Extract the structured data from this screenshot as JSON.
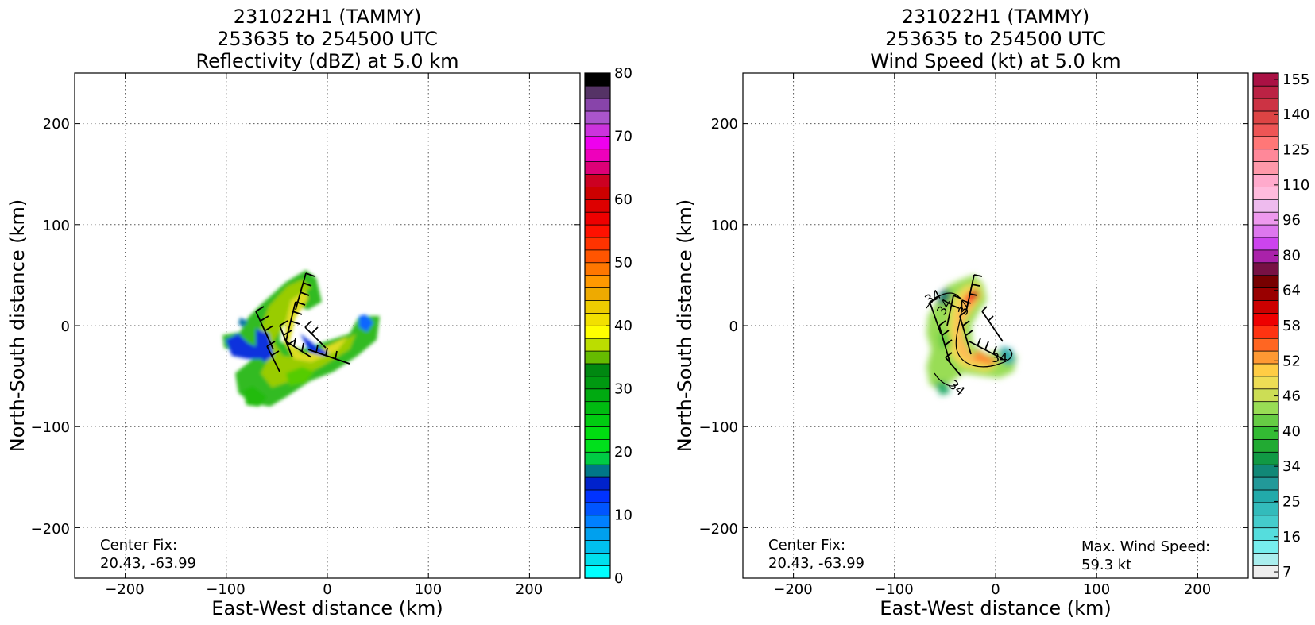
{
  "figure": {
    "panels": [
      "left",
      "right"
    ]
  },
  "chart_data": [
    {
      "type": "heatmap",
      "panel": "left",
      "title_lines": [
        "231022H1 (TAMMY)",
        "253635 to 254500 UTC",
        "Reflectivity (dBZ) at 5.0 km"
      ],
      "xlabel": "East-West distance (km)",
      "ylabel": "North-South distance (km)",
      "xlim": [
        -250,
        250
      ],
      "ylim": [
        -250,
        250
      ],
      "xticks": [
        -200,
        -100,
        0,
        100,
        200
      ],
      "yticks": [
        -200,
        -100,
        0,
        100,
        200
      ],
      "tick_labels": {
        "-200": "−200",
        "-100": "−100",
        "0": "0",
        "100": "100",
        "200": "200"
      },
      "grid": true,
      "annotations": [
        {
          "name": "center-fix",
          "lines": [
            "Center Fix:",
            "20.43, -63.99"
          ],
          "corner": "bottom-left"
        }
      ],
      "colorbar": {
        "label_values": [
          0,
          10,
          20,
          30,
          40,
          50,
          60,
          70,
          80
        ],
        "colors": [
          "#00ffff",
          "#00e0ee",
          "#00c0ee",
          "#00a0ee",
          "#0080ff",
          "#0055ff",
          "#0033ff",
          "#0022cc",
          "#007788",
          "#00cc44",
          "#00e01c",
          "#00dd11",
          "#00cc11",
          "#00bb11",
          "#00aa11",
          "#009911",
          "#008811",
          "#66bb00",
          "#bbdd00",
          "#ffff00",
          "#f2e000",
          "#eecc00",
          "#eeaa00",
          "#ff9900",
          "#ff7700",
          "#ff5500",
          "#ff3300",
          "#ff1100",
          "#ee0000",
          "#dd0000",
          "#cc0000",
          "#cc0022",
          "#dd0077",
          "#ee00bb",
          "#ee00ee",
          "#cc33dd",
          "#aa55cc",
          "#8844aa",
          "#553366",
          "#000000"
        ]
      },
      "contour_labels": [],
      "wind_barbs": "yes"
    },
    {
      "type": "heatmap",
      "panel": "right",
      "title_lines": [
        "231022H1 (TAMMY)",
        "253635 to 254500 UTC",
        "Wind Speed (kt) at 5.0 km"
      ],
      "xlabel": "East-West distance (km)",
      "ylabel": "North-South distance (km)",
      "xlim": [
        -250,
        250
      ],
      "ylim": [
        -250,
        250
      ],
      "xticks": [
        -200,
        -100,
        0,
        100,
        200
      ],
      "yticks": [
        -200,
        -100,
        0,
        100,
        200
      ],
      "tick_labels": {
        "-200": "−200",
        "-100": "−100",
        "0": "0",
        "100": "100",
        "200": "200"
      },
      "grid": true,
      "annotations": [
        {
          "name": "center-fix",
          "lines": [
            "Center Fix:",
            "20.43, -63.99"
          ],
          "corner": "bottom-left"
        },
        {
          "name": "max-wind-speed",
          "lines": [
            "Max. Wind Speed:",
            "59.3 kt"
          ],
          "corner": "bottom-right"
        }
      ],
      "colorbar": {
        "label_values": [
          7,
          16,
          25,
          34,
          40,
          46,
          52,
          58,
          64,
          80,
          96,
          110,
          125,
          140,
          155
        ],
        "colors": [
          "#eeeeee",
          "#aaeeee",
          "#77eeee",
          "#55dddd",
          "#44cccc",
          "#33bbbb",
          "#22aaaa",
          "#229999",
          "#118877",
          "#119944",
          "#22aa33",
          "#33bb33",
          "#66cc44",
          "#99dd55",
          "#ccdd55",
          "#eedd55",
          "#ffcc44",
          "#ff9933",
          "#ff6622",
          "#ff3311",
          "#ee0000",
          "#cc0000",
          "#990000",
          "#770000",
          "#771144",
          "#aa22aa",
          "#cc44ee",
          "#dd77ee",
          "#ee99ee",
          "#eebbee",
          "#ffbbdd",
          "#ffaacc",
          "#ff99aa",
          "#ff8899",
          "#ff7777",
          "#ee5555",
          "#dd4444",
          "#cc3344",
          "#bb2244",
          "#aa1144"
        ]
      },
      "contour_labels": [
        "34",
        "34",
        "34",
        "34",
        "34"
      ],
      "wind_barbs": "yes"
    }
  ]
}
